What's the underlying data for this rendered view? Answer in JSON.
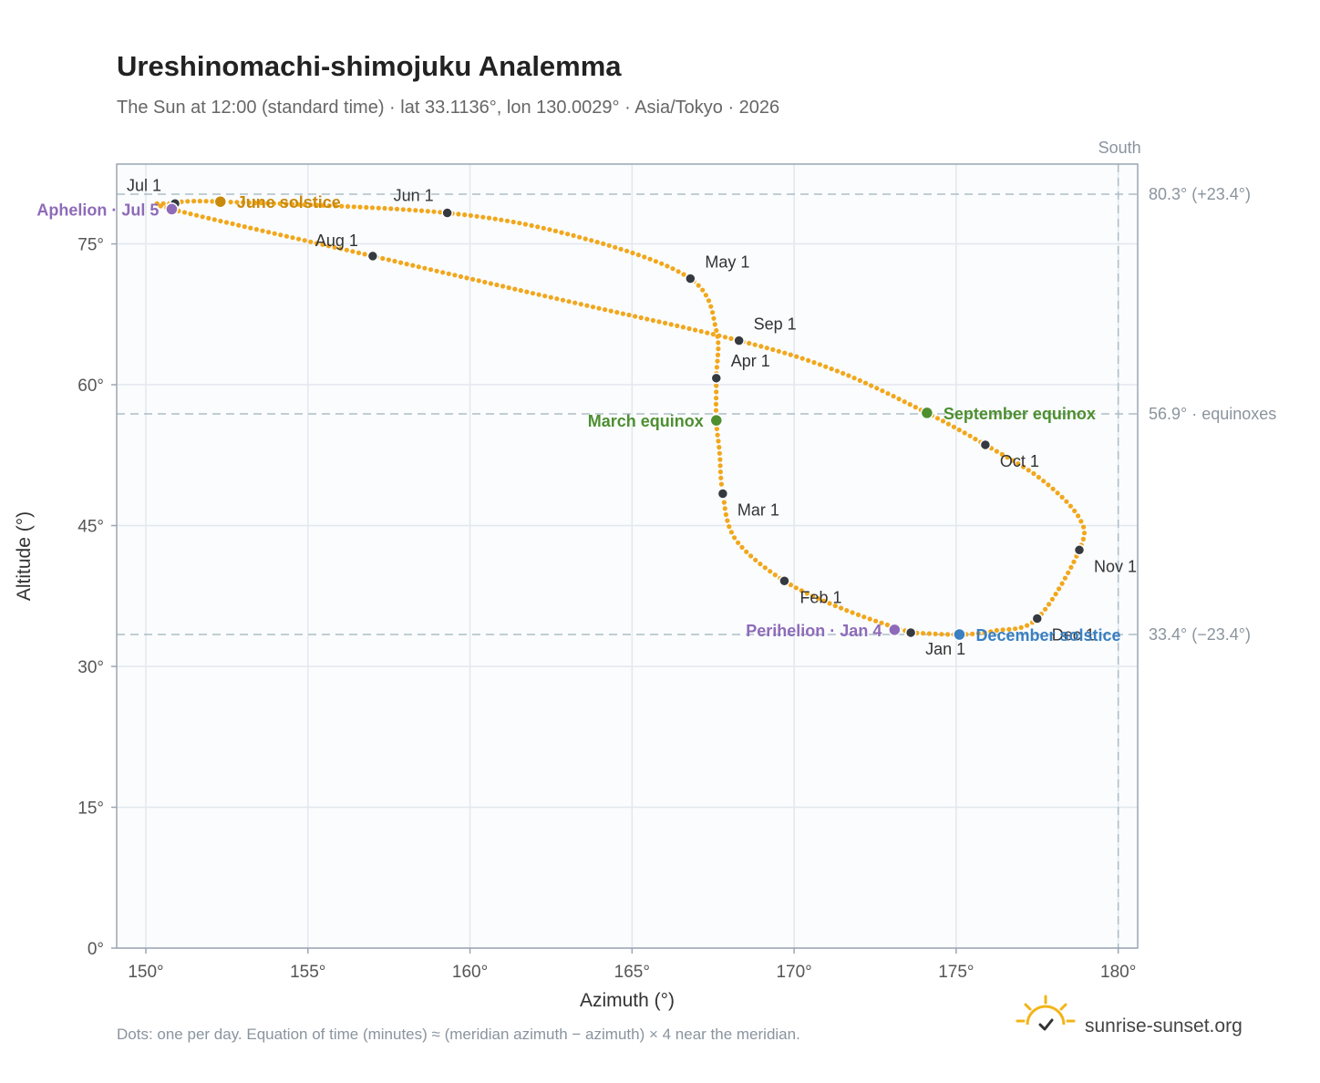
{
  "chart_data": {
    "type": "scatter",
    "title": "Ureshinomachi-shimojuku Analemma",
    "subtitle": "The Sun at 12:00 (standard time) · lat 33.1136°, lon 130.0029° · Asia/Tokyo · 2026",
    "xlabel": "Azimuth (°)",
    "ylabel": "Altitude (°)",
    "xlim": [
      149.1,
      180.6
    ],
    "ylim": [
      0,
      83.5
    ],
    "x_ticks": [
      {
        "value": 150,
        "label": "150°"
      },
      {
        "value": 155,
        "label": "155°"
      },
      {
        "value": 160,
        "label": "160°"
      },
      {
        "value": 165,
        "label": "165°"
      },
      {
        "value": 170,
        "label": "170°"
      },
      {
        "value": 175,
        "label": "175°"
      },
      {
        "value": 180,
        "label": "180°"
      }
    ],
    "y_ticks": [
      {
        "value": 0,
        "label": "0°"
      },
      {
        "value": 15,
        "label": "15°"
      },
      {
        "value": 30,
        "label": "30°"
      },
      {
        "value": 45,
        "label": "45°"
      },
      {
        "value": 60,
        "label": "60°"
      },
      {
        "value": 75,
        "label": "75°"
      }
    ],
    "grid": true,
    "reference_lines": [
      {
        "axis": "y",
        "value": 80.3,
        "label": "80.3° (+23.4°)"
      },
      {
        "axis": "y",
        "value": 56.9,
        "label": "56.9° · equinoxes"
      },
      {
        "axis": "y",
        "value": 33.4,
        "label": "33.4° (−23.4°)"
      },
      {
        "axis": "x",
        "value": 180,
        "label": "South"
      }
    ],
    "series": [
      {
        "color": "#f2a71b",
        "style": "dots, one per day",
        "points_azimuth_altitude": [
          [
            173.6,
            33.6
          ],
          [
            171.6,
            36.0
          ],
          [
            169.7,
            39.1
          ],
          [
            168.2,
            43.5
          ],
          [
            167.8,
            48.4
          ],
          [
            167.7,
            52.8
          ],
          [
            167.6,
            56.2
          ],
          [
            167.6,
            60.7
          ],
          [
            167.6,
            65.8
          ],
          [
            166.8,
            71.3
          ],
          [
            163.5,
            75.6
          ],
          [
            159.3,
            78.3
          ],
          [
            152.3,
            79.5
          ],
          [
            150.9,
            79.3
          ],
          [
            150.8,
            78.7
          ],
          [
            157.0,
            73.7
          ],
          [
            162.5,
            69.3
          ],
          [
            168.3,
            64.7
          ],
          [
            171.3,
            61.5
          ],
          [
            174.1,
            57.0
          ],
          [
            175.9,
            53.6
          ],
          [
            177.6,
            50.0
          ],
          [
            178.8,
            45.8
          ],
          [
            178.8,
            42.4
          ],
          [
            177.5,
            35.1
          ],
          [
            176.2,
            33.8
          ],
          [
            175.1,
            33.4
          ],
          [
            173.6,
            33.6
          ]
        ]
      }
    ],
    "month_markers": [
      {
        "label": "Jan 1",
        "azimuth": 173.6,
        "altitude": 33.6
      },
      {
        "label": "Feb 1",
        "azimuth": 169.7,
        "altitude": 39.1
      },
      {
        "label": "Mar 1",
        "azimuth": 167.8,
        "altitude": 48.4
      },
      {
        "label": "Apr 1",
        "azimuth": 167.6,
        "altitude": 60.7
      },
      {
        "label": "May 1",
        "azimuth": 166.8,
        "altitude": 71.3
      },
      {
        "label": "Jun 1",
        "azimuth": 159.3,
        "altitude": 78.3
      },
      {
        "label": "Jul 1",
        "azimuth": 150.9,
        "altitude": 79.3
      },
      {
        "label": "Aug 1",
        "azimuth": 157.0,
        "altitude": 73.7
      },
      {
        "label": "Sep 1",
        "azimuth": 168.3,
        "altitude": 64.7
      },
      {
        "label": "Oct 1",
        "azimuth": 175.9,
        "altitude": 53.6
      },
      {
        "label": "Nov 1",
        "azimuth": 178.8,
        "altitude": 42.4
      },
      {
        "label": "Dec 1",
        "azimuth": 177.5,
        "altitude": 35.1
      }
    ],
    "events": [
      {
        "label": "June solstice",
        "azimuth": 152.3,
        "altitude": 79.5,
        "color": "#c98a0c",
        "anchor": "start"
      },
      {
        "label": "Aphelion · Jul 5",
        "azimuth": 150.8,
        "altitude": 78.7,
        "color": "#8e6bb8",
        "anchor": "end"
      },
      {
        "label": "March equinox",
        "azimuth": 167.6,
        "altitude": 56.2,
        "color": "#4e8f30",
        "anchor": "end"
      },
      {
        "label": "September equinox",
        "azimuth": 174.1,
        "altitude": 57.0,
        "color": "#4e8f30",
        "anchor": "start"
      },
      {
        "label": "Perihelion · Jan 4",
        "azimuth": 173.1,
        "altitude": 33.9,
        "color": "#8e6bb8",
        "anchor": "end"
      },
      {
        "label": "December solstice",
        "azimuth": 175.1,
        "altitude": 33.4,
        "color": "#3a7fc1",
        "anchor": "start"
      }
    ],
    "footnote": "Dots: one per day. Equation of time (minutes) ≈ (meridian azimuth − azimuth) × 4 near the meridian.",
    "brand": "sunrise-sunset.org"
  }
}
